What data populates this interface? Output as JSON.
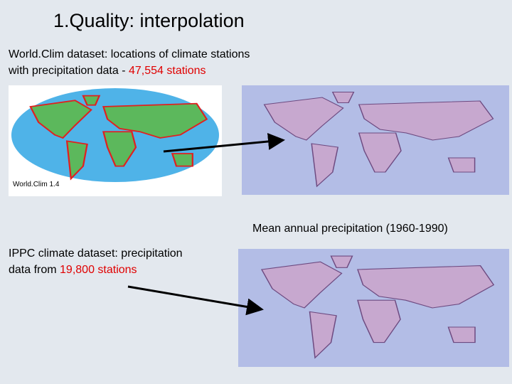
{
  "title": "1.Quality: interpolation",
  "worldclim": {
    "lines": [
      "World.Clim dataset: locations of climate stations",
      "with precipitation data - "
    ],
    "count": "47,554 stations",
    "map_label": "World.Clim 1.4"
  },
  "mean_caption": "Mean annual precipitation (1960-1990)",
  "ippc": {
    "lines": [
      "IPPC climate dataset: precipitation",
      "data from "
    ],
    "count": "19,800 stations"
  }
}
